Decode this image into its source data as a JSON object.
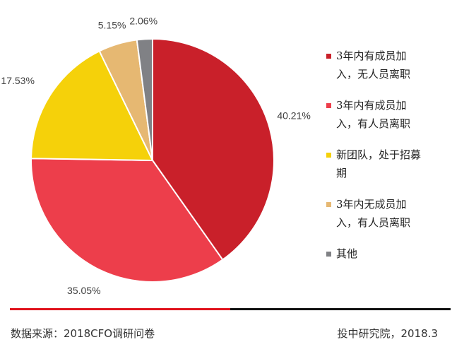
{
  "chart_data": {
    "type": "pie",
    "slices": [
      {
        "label": "3年内有成员加入，无人员离职",
        "value": 40.21,
        "display": "40.21%",
        "color": "#c9202a"
      },
      {
        "label": "3年内有成员加入，有人员离职",
        "value": 35.05,
        "display": "35.05%",
        "color": "#ed3e4b"
      },
      {
        "label": "新团队，处于招募期",
        "value": 17.53,
        "display": "17.53%",
        "color": "#f5d10a"
      },
      {
        "label": "3年内无成员加入，有人员离职",
        "value": 5.15,
        "display": "5.15%",
        "color": "#e6b872"
      },
      {
        "label": "其他",
        "value": 2.06,
        "display": "2.06%",
        "color": "#808185"
      }
    ],
    "legend_position": "right"
  },
  "legend": [
    {
      "line1": "3年内有成员加",
      "line2": "入，无人员离职"
    },
    {
      "line1": "3年内有成员加",
      "line2": "入，有人员离职"
    },
    {
      "line1": "新团队，处于招募",
      "line2": "期"
    },
    {
      "line1": "3年内无成员加",
      "line2": "入，有人员离职"
    },
    {
      "line1": "其他",
      "line2": ""
    }
  ],
  "footer": {
    "source": "数据来源：2018CFO调研问卷",
    "publisher": "投中研究院，2018.3"
  }
}
